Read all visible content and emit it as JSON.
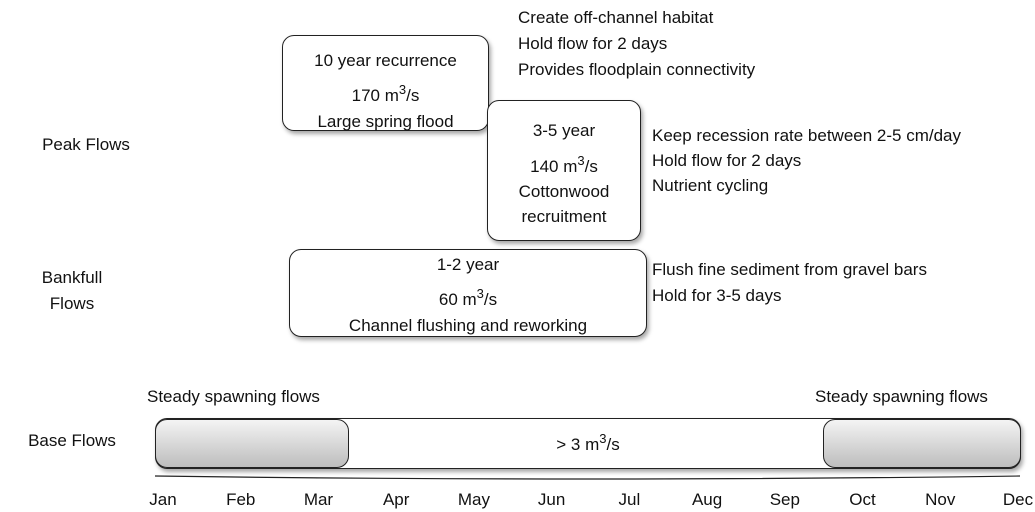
{
  "row_labels": {
    "peak": "Peak Flows",
    "bankfull": [
      "Bankfull",
      "Flows"
    ],
    "base": "Base Flows"
  },
  "boxes": [
    {
      "title": "10 year recurrence",
      "flow": {
        "pre": "170 m",
        "sup": "3",
        "post": "/s"
      },
      "description": [
        "Large spring flood"
      ]
    },
    {
      "title": "3-5 year",
      "flow": {
        "pre": "140 m",
        "sup": "3",
        "post": "/s"
      },
      "description": [
        "Cottonwood",
        "recruitment"
      ]
    },
    {
      "title": "1-2 year",
      "flow": {
        "pre": "60 m",
        "sup": "3",
        "post": "/s"
      },
      "description": [
        "Channel flushing and reworking"
      ]
    }
  ],
  "notes": [
    [
      "Create off-channel habitat",
      "Hold flow for 2 days",
      "Provides floodplain connectivity"
    ],
    [
      "Keep recession rate between 2-5 cm/day",
      "Hold flow for 2 days",
      "Nutrient cycling"
    ],
    [
      "Flush fine sediment from gravel bars",
      "Hold for 3-5 days"
    ]
  ],
  "base": {
    "left_label": "Steady spawning flows",
    "right_label": "Steady spawning flows",
    "flow": {
      "pre": "> 3 m",
      "sup": "3",
      "post": "/s"
    }
  },
  "months": [
    "Jan",
    "Feb",
    "Mar",
    "Apr",
    "May",
    "Jun",
    "Jul",
    "Aug",
    "Sep",
    "Oct",
    "Nov",
    "Dec"
  ]
}
